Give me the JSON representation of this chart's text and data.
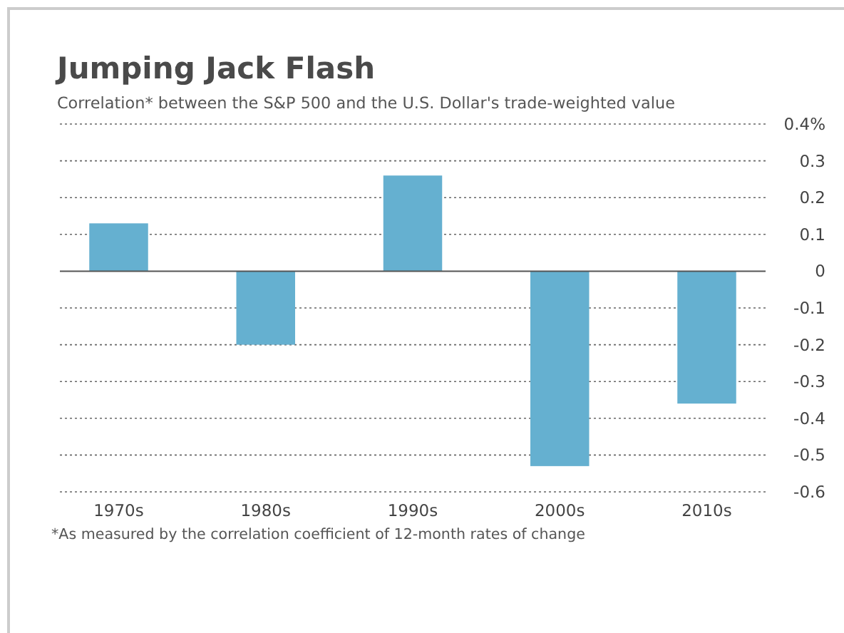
{
  "chart_data": {
    "type": "bar",
    "title": "Jumping Jack Flash",
    "subtitle": "Correlation* between the S&P 500 and the U.S. Dollar's trade-weighted value",
    "categories": [
      "1970s",
      "1980s",
      "1990s",
      "2000s",
      "2010s"
    ],
    "values": [
      0.13,
      -0.2,
      0.26,
      -0.53,
      -0.36
    ],
    "color": "#65b0d0",
    "ylim": [
      -0.6,
      0.4
    ],
    "yticks": [
      {
        "value": 0.4,
        "label": "0.4%"
      },
      {
        "value": 0.3,
        "label": "0.3"
      },
      {
        "value": 0.2,
        "label": "0.2"
      },
      {
        "value": 0.1,
        "label": "0.1"
      },
      0,
      {
        "value": -0.1,
        "label": "-0.1"
      },
      {
        "value": -0.2,
        "label": "-0.2"
      },
      {
        "value": -0.3,
        "label": "-0.3"
      },
      {
        "value": -0.4,
        "label": "-0.4"
      },
      {
        "value": -0.5,
        "label": "-0.5"
      },
      {
        "value": -0.6,
        "label": "-0.6"
      }
    ],
    "grid": "y",
    "annotations": [
      "*As measured by the correlation coefficient of 12-month rates of change"
    ]
  }
}
